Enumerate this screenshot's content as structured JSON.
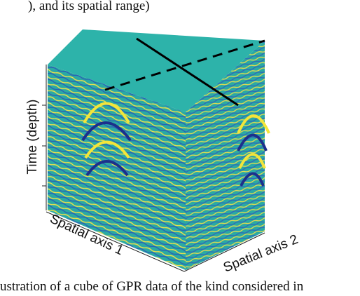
{
  "figure": {
    "caption_top": "), and its spatial range)",
    "axis_time": "Time (depth)",
    "axis_spatial_1": "Spatial axis 1",
    "axis_spatial_2": "Spatial axis 2",
    "caption_bottom": "ustration of a cube of GPR data of the kind considered in"
  }
}
